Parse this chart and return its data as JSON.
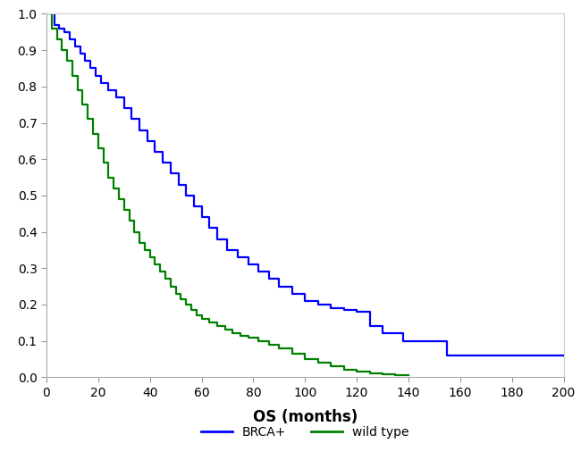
{
  "title": "",
  "xlabel": "OS (months)",
  "ylabel": "",
  "xlim": [
    0,
    200
  ],
  "ylim": [
    0,
    1.0
  ],
  "xticks": [
    0,
    20,
    40,
    60,
    80,
    100,
    120,
    140,
    160,
    180,
    200
  ],
  "yticks": [
    0,
    0.1,
    0.2,
    0.3,
    0.4,
    0.5,
    0.6,
    0.7,
    0.8,
    0.9,
    1
  ],
  "brca_color": "#0000ff",
  "wt_color": "#008000",
  "line_width": 1.6,
  "legend_labels": [
    "BRCA+",
    "wild type"
  ],
  "brca_times": [
    0,
    3,
    5,
    7,
    9,
    11,
    13,
    15,
    17,
    19,
    21,
    24,
    27,
    30,
    33,
    36,
    39,
    42,
    45,
    48,
    51,
    54,
    57,
    60,
    63,
    66,
    70,
    74,
    78,
    82,
    86,
    90,
    95,
    100,
    105,
    110,
    115,
    120,
    125,
    130,
    138,
    155,
    200
  ],
  "brca_surv": [
    1.0,
    0.97,
    0.96,
    0.95,
    0.93,
    0.91,
    0.89,
    0.87,
    0.85,
    0.83,
    0.81,
    0.79,
    0.77,
    0.74,
    0.71,
    0.68,
    0.65,
    0.62,
    0.59,
    0.56,
    0.53,
    0.5,
    0.47,
    0.44,
    0.41,
    0.38,
    0.35,
    0.33,
    0.31,
    0.29,
    0.27,
    0.25,
    0.23,
    0.21,
    0.2,
    0.19,
    0.185,
    0.18,
    0.14,
    0.12,
    0.1,
    0.06,
    0.06
  ],
  "wt_times": [
    0,
    2,
    4,
    6,
    8,
    10,
    12,
    14,
    16,
    18,
    20,
    22,
    24,
    26,
    28,
    30,
    32,
    34,
    36,
    38,
    40,
    42,
    44,
    46,
    48,
    50,
    52,
    54,
    56,
    58,
    60,
    63,
    66,
    69,
    72,
    75,
    78,
    82,
    86,
    90,
    95,
    100,
    105,
    110,
    115,
    120,
    125,
    130,
    135,
    140
  ],
  "wt_surv": [
    1.0,
    0.96,
    0.93,
    0.9,
    0.87,
    0.83,
    0.79,
    0.75,
    0.71,
    0.67,
    0.63,
    0.59,
    0.55,
    0.52,
    0.49,
    0.46,
    0.43,
    0.4,
    0.37,
    0.35,
    0.33,
    0.31,
    0.29,
    0.27,
    0.25,
    0.23,
    0.215,
    0.2,
    0.185,
    0.17,
    0.16,
    0.15,
    0.14,
    0.13,
    0.12,
    0.115,
    0.11,
    0.1,
    0.09,
    0.08,
    0.065,
    0.05,
    0.04,
    0.03,
    0.02,
    0.015,
    0.01,
    0.008,
    0.005,
    0.005
  ]
}
